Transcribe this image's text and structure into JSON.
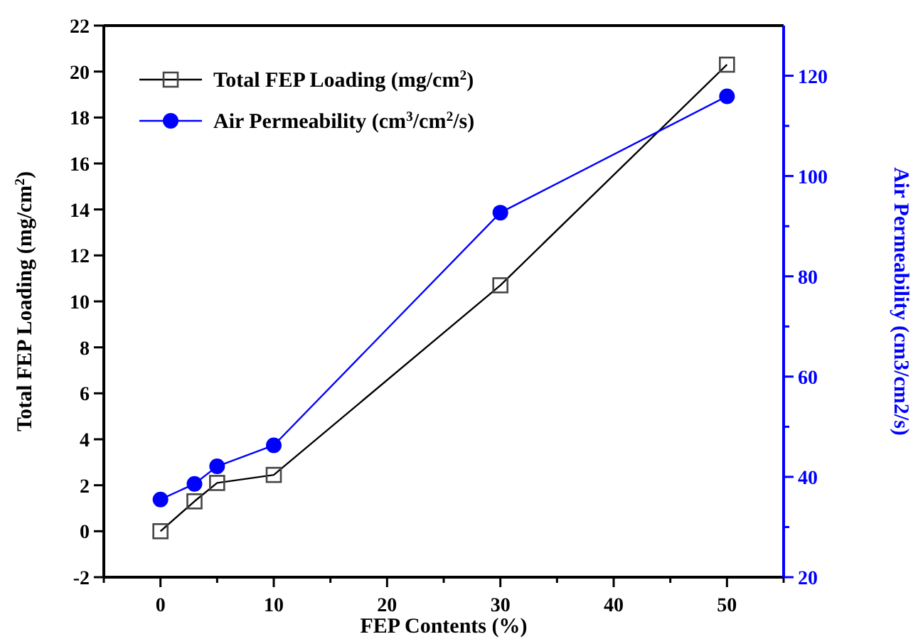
{
  "chart_data": {
    "type": "line",
    "xlabel": "FEP Contents (%)",
    "ylabel": "Total FEP Loading (mg/cm$^{2}$)",
    "y2label": "Air Permeability (cm3/cm2/s)",
    "x": [
      0,
      3,
      5,
      10,
      30,
      50
    ],
    "series": [
      {
        "name": "Total FEP Loading (mg/cm$^{2}$)",
        "color": "#000000",
        "marker": "square",
        "values": [
          0,
          1.3,
          2.1,
          2.45,
          10.7,
          20.3
        ]
      },
      {
        "name": "Air Permeability (cm$^{3}$/cm$^{2}$/s)",
        "color": "#0000ff",
        "marker": "circle",
        "axis": "y2",
        "values": [
          35.5,
          38.6,
          42.1,
          46.3,
          92.7,
          115.9
        ]
      }
    ],
    "xlim": [
      -5,
      55
    ],
    "xticks": [
      {
        "value": -5,
        "label": null
      },
      0,
      {
        "value": 5,
        "label": null
      },
      10,
      {
        "value": 15,
        "label": null
      },
      20,
      {
        "value": 25,
        "label": null
      },
      30,
      {
        "value": 35,
        "label": null
      },
      40,
      {
        "value": 45,
        "label": null
      },
      50,
      {
        "value": 55,
        "label": null
      }
    ],
    "ylim": [
      -2,
      22
    ],
    "yticks": [
      -2,
      0,
      2,
      4,
      6,
      8,
      10,
      12,
      14,
      16,
      18,
      20,
      22
    ],
    "y2lim": [
      20,
      130
    ],
    "y2ticks": [
      20,
      {
        "value": 30,
        "label": null
      },
      40,
      {
        "value": 50,
        "label": null
      },
      60,
      {
        "value": 70,
        "label": null
      },
      80,
      {
        "value": 90,
        "label": null
      },
      100,
      {
        "value": 110,
        "label": null
      },
      120
    ],
    "legend": "top left",
    "grid": false,
    "line_style": "solid"
  }
}
